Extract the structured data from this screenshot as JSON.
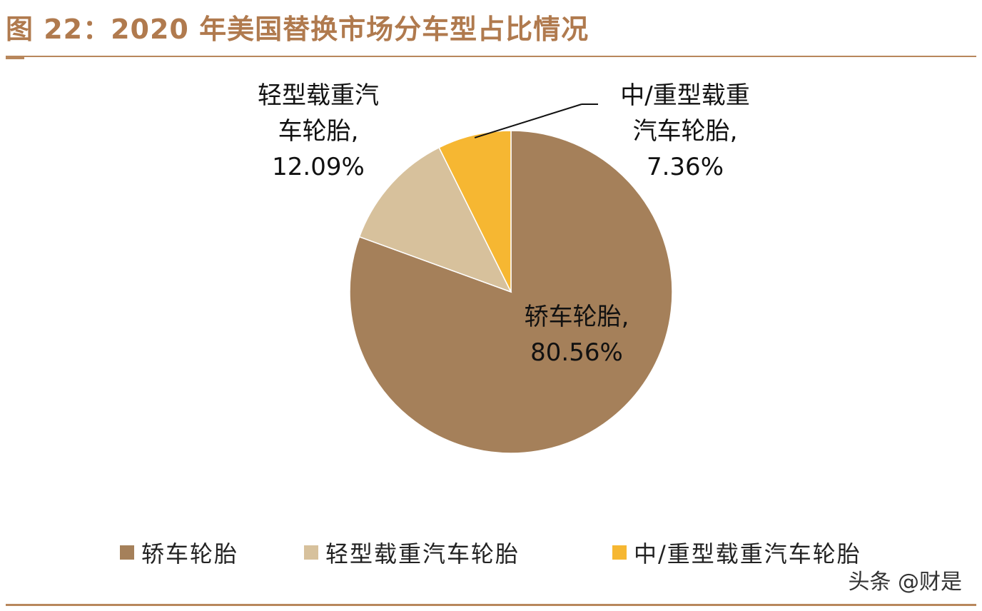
{
  "title": "图 22：2020 年美国替换市场分车型占比情况",
  "watermark": "头条 @财是",
  "chart_data": {
    "type": "pie",
    "title": "图 22：2020 年美国替换市场分车型占比情况",
    "legend_position": "bottom",
    "start_angle_deg": 0,
    "direction": "clockwise",
    "slices": [
      {
        "name": "轿车轮胎",
        "value": 80.56,
        "value_label": "80.56%",
        "label_lines": [
          "轿车轮胎,",
          "80.56%"
        ],
        "color": "#a5805a"
      },
      {
        "name": "轻型载重汽车轮胎",
        "value": 12.09,
        "value_label": "12.09%",
        "label_lines": [
          "轻型载重汽",
          "车轮胎,",
          "12.09%"
        ],
        "color": "#d7c19c"
      },
      {
        "name": "中/重型载重汽车轮胎",
        "value": 7.36,
        "value_label": "7.36%",
        "label_lines": [
          "中/重型载重",
          "汽车轮胎,",
          "7.36%"
        ],
        "color": "#f6b732"
      }
    ]
  }
}
